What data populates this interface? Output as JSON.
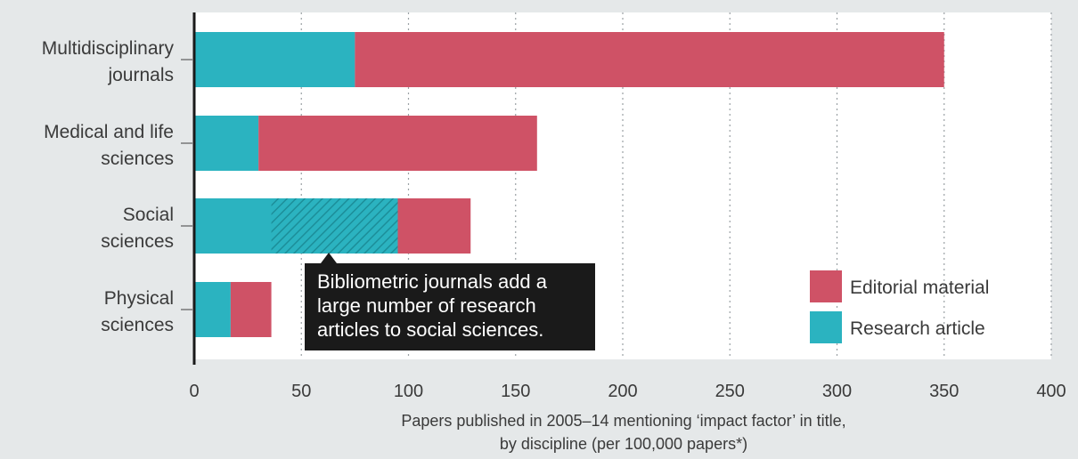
{
  "chart_data": {
    "type": "bar",
    "orientation": "horizontal",
    "stacked": true,
    "categories": [
      [
        "Multidisciplinary",
        "journals"
      ],
      [
        "Medical and life",
        "sciences"
      ],
      [
        "Social",
        "sciences"
      ],
      [
        "Physical",
        "sciences"
      ]
    ],
    "series": [
      {
        "name": "Research article",
        "values": [
          75,
          30,
          95,
          17
        ],
        "color": "#2bb3c0"
      },
      {
        "name": "Editorial material",
        "values": [
          275,
          130,
          34,
          19
        ],
        "color": "#cf5266"
      }
    ],
    "highlight": {
      "category_index": 2,
      "series_index": 0,
      "from": 36,
      "to": 95,
      "pattern": "hatched"
    },
    "xlim": [
      0,
      400
    ],
    "xticks": [
      0,
      50,
      100,
      150,
      200,
      250,
      300,
      350,
      400
    ],
    "xlabel": [
      "Papers published in 2005–14 mentioning ‘impact factor’ in title,",
      "by discipline (per 100,000 papers*)"
    ],
    "legend": {
      "position": "bottom-right",
      "order": [
        "Editorial material",
        "Research article"
      ]
    },
    "annotation": [
      "Bibliometric journals add a",
      "large number of research",
      "articles to social sciences."
    ],
    "grid": {
      "x": true,
      "style": "dotted"
    }
  }
}
